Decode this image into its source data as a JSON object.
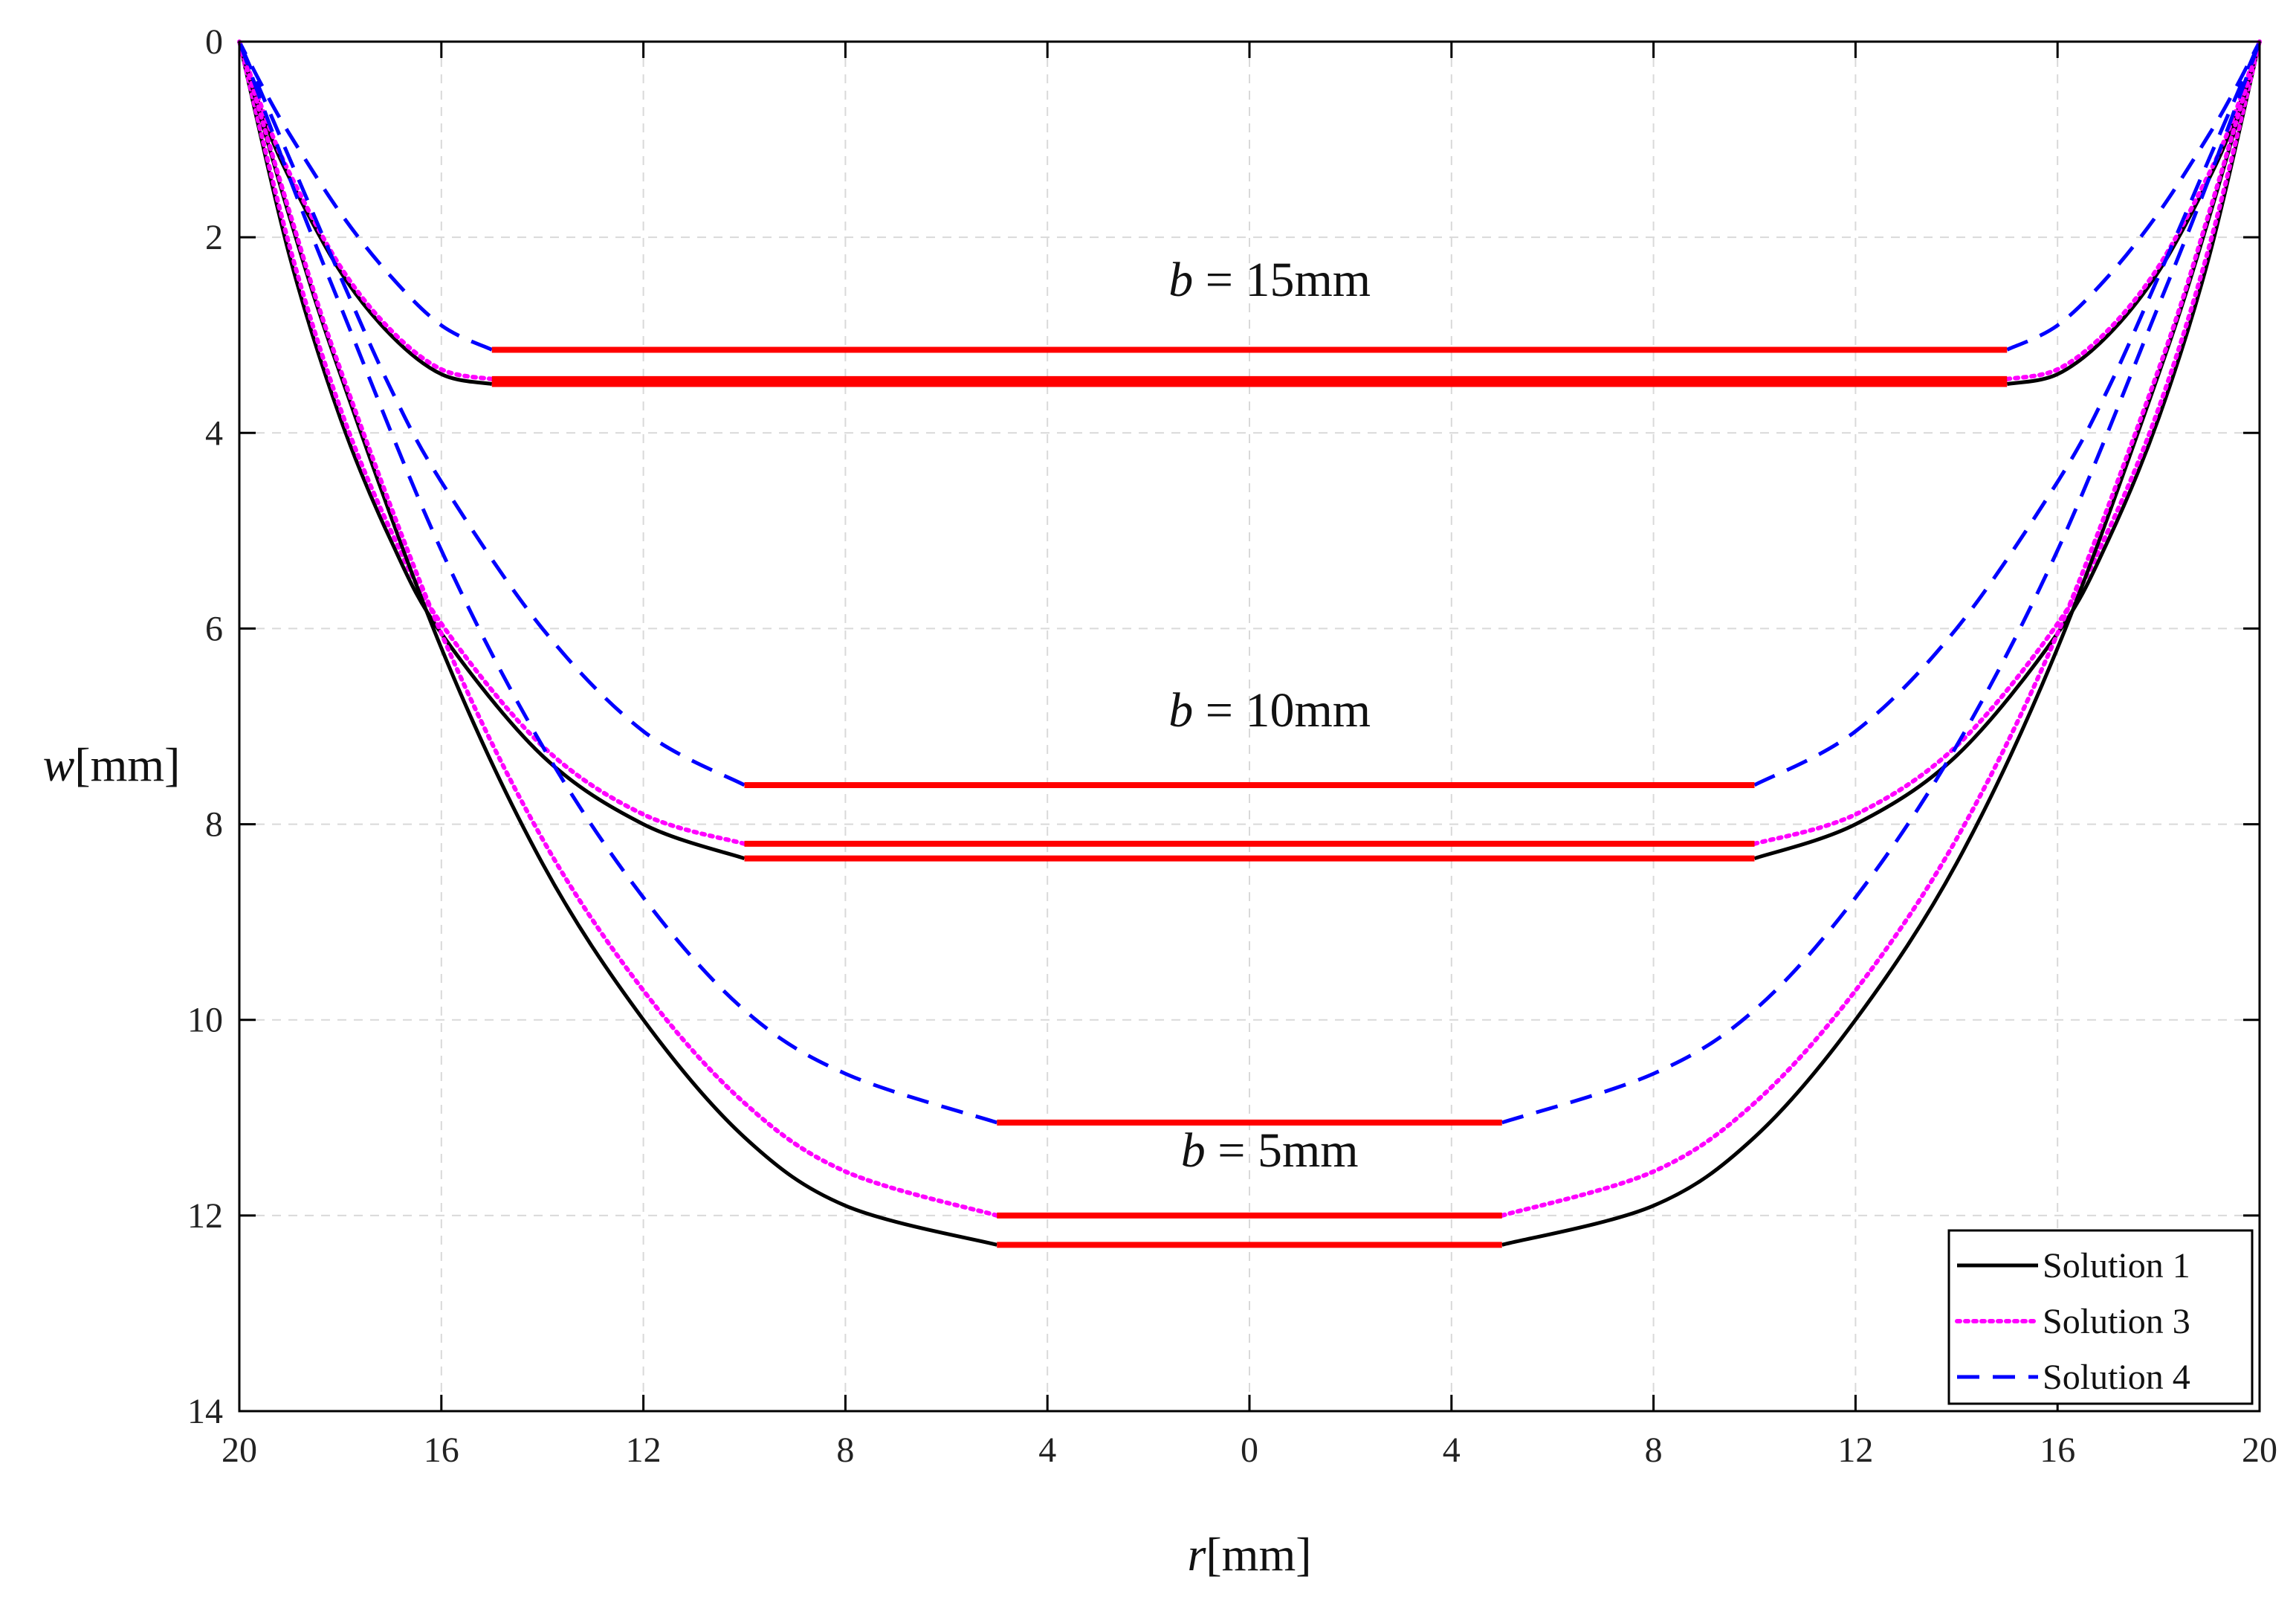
{
  "chart_data": {
    "type": "line",
    "title": "",
    "xlabel": {
      "var": "r",
      "unit": "[mm]"
    },
    "ylabel": {
      "var": "w",
      "unit": "[mm]"
    },
    "xlim": [
      -20,
      20
    ],
    "ylim": [
      0,
      14
    ],
    "y_reversed": true,
    "grid": true,
    "x_ticks": [
      -20,
      -16,
      -12,
      -8,
      -4,
      0,
      4,
      8,
      12,
      16,
      20
    ],
    "x_tick_labels": [
      "20",
      "16",
      "12",
      "8",
      "4",
      "0",
      "4",
      "8",
      "12",
      "16",
      "20"
    ],
    "y_ticks": [
      0,
      2,
      4,
      6,
      8,
      10,
      12,
      14
    ],
    "y_tick_labels": [
      "0",
      "2",
      "4",
      "6",
      "8",
      "10",
      "12",
      "14"
    ],
    "legend": {
      "position": "bottom-right",
      "entries": [
        {
          "label": "Solution 1",
          "color": "#000000",
          "style": "solid"
        },
        {
          "label": "Solution 3",
          "color": "#ff00ff",
          "style": "dotted"
        },
        {
          "label": "Solution 4",
          "color": "#0000ff",
          "style": "dashed"
        }
      ]
    },
    "flat_color": "#ff0000",
    "series": [
      {
        "name": "Solution 1",
        "b": 15,
        "color": "#000000",
        "style": "solid",
        "w_flat": 3.5,
        "x": [
          15,
          16,
          17,
          18,
          19,
          19.5,
          20
        ],
        "y": [
          3.5,
          3.4,
          3.0,
          2.35,
          1.4,
          0.8,
          0.0
        ]
      },
      {
        "name": "Solution 3",
        "b": 15,
        "color": "#ff00ff",
        "style": "dotted",
        "w_flat": 3.45,
        "x": [
          15,
          16,
          17,
          18,
          19,
          19.5,
          20
        ],
        "y": [
          3.45,
          3.35,
          2.95,
          2.3,
          1.35,
          0.75,
          0.0
        ]
      },
      {
        "name": "Solution 4",
        "b": 15,
        "color": "#0000ff",
        "style": "dashed",
        "w_flat": 3.15,
        "x": [
          15,
          16,
          17,
          18,
          19,
          19.5,
          20
        ],
        "y": [
          3.15,
          2.9,
          2.4,
          1.75,
          0.95,
          0.5,
          0.0
        ]
      },
      {
        "name": "Solution 1",
        "b": 10,
        "color": "#000000",
        "style": "solid",
        "w_flat": 8.35,
        "x": [
          10,
          12,
          14,
          16,
          17,
          18,
          19,
          20
        ],
        "y": [
          8.35,
          8.0,
          7.3,
          6.05,
          5.1,
          3.85,
          2.2,
          0.0
        ]
      },
      {
        "name": "Solution 3",
        "b": 10,
        "color": "#ff00ff",
        "style": "dotted",
        "w_flat": 8.2,
        "x": [
          10,
          12,
          14,
          16,
          17,
          18,
          19,
          20
        ],
        "y": [
          8.2,
          7.9,
          7.2,
          5.95,
          5.0,
          3.75,
          2.1,
          0.0
        ]
      },
      {
        "name": "Solution 4",
        "b": 10,
        "color": "#0000ff",
        "style": "dashed",
        "w_flat": 7.6,
        "x": [
          10,
          12,
          14,
          16,
          17,
          18,
          19,
          20
        ],
        "y": [
          7.6,
          7.05,
          6.0,
          4.5,
          3.55,
          2.4,
          1.2,
          0.0
        ]
      },
      {
        "name": "Solution 1",
        "b": 5,
        "color": "#000000",
        "style": "solid",
        "w_flat": 12.3,
        "x": [
          5,
          8,
          10,
          12,
          14,
          16,
          18,
          19,
          20
        ],
        "y": [
          12.3,
          11.9,
          11.2,
          10.0,
          8.4,
          6.2,
          3.4,
          1.8,
          0.0
        ]
      },
      {
        "name": "Solution 3",
        "b": 5,
        "color": "#ff00ff",
        "style": "dotted",
        "w_flat": 12.0,
        "x": [
          5,
          8,
          10,
          12,
          14,
          16,
          18,
          19,
          20
        ],
        "y": [
          12.0,
          11.55,
          10.85,
          9.7,
          8.15,
          6.05,
          3.35,
          1.75,
          0.0
        ]
      },
      {
        "name": "Solution 4",
        "b": 5,
        "color": "#0000ff",
        "style": "dashed",
        "w_flat": 11.05,
        "x": [
          5,
          8,
          10,
          12,
          14,
          16,
          18,
          19,
          20
        ],
        "y": [
          11.05,
          10.55,
          9.9,
          8.75,
          7.2,
          5.2,
          2.7,
          1.4,
          0.0
        ]
      }
    ],
    "annotations": [
      {
        "text_var": "b",
        "text_rest": " = 15mm",
        "x": 0.4,
        "y": 2.6
      },
      {
        "text_var": "b",
        "text_rest": " = 10mm",
        "x": 0.4,
        "y": 7.0
      },
      {
        "text_var": "b",
        "text_rest": " = 5mm",
        "x": 0.4,
        "y": 11.5
      }
    ]
  }
}
